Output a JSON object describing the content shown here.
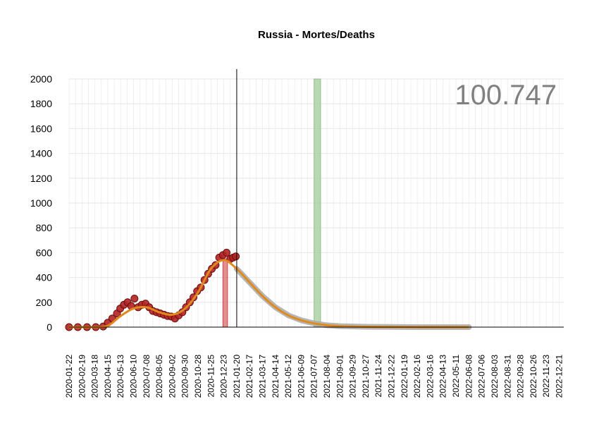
{
  "chart_data": {
    "type": "line",
    "title": "Russia - Mortes/Deaths",
    "total_label": "100.747",
    "xlabel": "",
    "ylabel": "",
    "ylim": [
      0,
      2000
    ],
    "yticks": [
      0,
      200,
      400,
      600,
      800,
      1000,
      1200,
      1400,
      1600,
      1800,
      2000
    ],
    "x_range": [
      "2020-01-22",
      "2022-12-31"
    ],
    "x_ticks": [
      "2020-01-22",
      "2020-02-19",
      "2020-03-18",
      "2020-04-15",
      "2020-05-13",
      "2020-06-10",
      "2020-07-08",
      "2020-08-05",
      "2020-09-02",
      "2020-09-30",
      "2020-10-28",
      "2020-11-25",
      "2020-12-23",
      "2021-01-20",
      "2021-02-17",
      "2021-03-17",
      "2021-04-14",
      "2021-05-12",
      "2021-06-09",
      "2021-07-07",
      "2021-08-04",
      "2021-09-01",
      "2021-09-29",
      "2021-10-27",
      "2021-11-24",
      "2021-12-22",
      "2022-01-19",
      "2022-02-16",
      "2022-03-16",
      "2022-04-13",
      "2022-05-11",
      "2022-06-08",
      "2022-07-06",
      "2022-08-03",
      "2022-08-31",
      "2022-09-28",
      "2022-10-26",
      "2022-11-23",
      "2022-12-21"
    ],
    "grid": true,
    "current_date": "2021-01-20",
    "observed_color": "#b22222",
    "fit_color": "#e08a1e",
    "projection_color": "#a9a9a9",
    "peak_band": {
      "start": "2020-12-21",
      "end": "2020-12-31",
      "value": 550,
      "color": "#d96b6b"
    },
    "projected_band": {
      "start": "2021-07-07",
      "end": "2021-07-21",
      "value": 2000,
      "color": "#a8cfa0"
    },
    "observed": {
      "x": [
        "2020-01-22",
        "2020-02-10",
        "2020-03-01",
        "2020-03-20",
        "2020-04-05",
        "2020-04-15",
        "2020-04-25",
        "2020-05-05",
        "2020-05-12",
        "2020-05-20",
        "2020-05-28",
        "2020-06-05",
        "2020-06-12",
        "2020-06-20",
        "2020-06-28",
        "2020-07-06",
        "2020-07-14",
        "2020-07-22",
        "2020-07-30",
        "2020-08-07",
        "2020-08-15",
        "2020-08-23",
        "2020-08-31",
        "2020-09-08",
        "2020-09-16",
        "2020-09-24",
        "2020-10-02",
        "2020-10-10",
        "2020-10-18",
        "2020-10-26",
        "2020-11-03",
        "2020-11-11",
        "2020-11-19",
        "2020-11-27",
        "2020-12-05",
        "2020-12-13",
        "2020-12-21",
        "2020-12-29",
        "2021-01-06",
        "2021-01-12",
        "2021-01-18"
      ],
      "y": [
        0,
        0,
        0,
        0,
        5,
        35,
        70,
        110,
        150,
        180,
        200,
        170,
        230,
        160,
        180,
        190,
        160,
        130,
        120,
        110,
        100,
        90,
        85,
        70,
        95,
        120,
        160,
        200,
        240,
        290,
        320,
        380,
        430,
        470,
        500,
        560,
        580,
        600,
        550,
        560,
        570
      ]
    },
    "fit": {
      "x": [
        "2020-01-22",
        "2020-03-18",
        "2020-04-15",
        "2020-05-13",
        "2020-06-10",
        "2020-07-08",
        "2020-08-05",
        "2020-09-02",
        "2020-09-30",
        "2020-10-28",
        "2020-11-25",
        "2020-12-23",
        "2021-01-20",
        "2021-02-17",
        "2021-03-17",
        "2021-04-14",
        "2021-05-12",
        "2021-06-09",
        "2021-07-07",
        "2021-08-04",
        "2021-09-01",
        "2021-10-27",
        "2021-12-22",
        "2022-02-16",
        "2022-04-13",
        "2022-06-08"
      ],
      "y": [
        0,
        0,
        10,
        90,
        150,
        160,
        120,
        100,
        150,
        280,
        470,
        540,
        470,
        360,
        250,
        160,
        95,
        55,
        30,
        15,
        8,
        3,
        1,
        0,
        0,
        0
      ]
    }
  }
}
